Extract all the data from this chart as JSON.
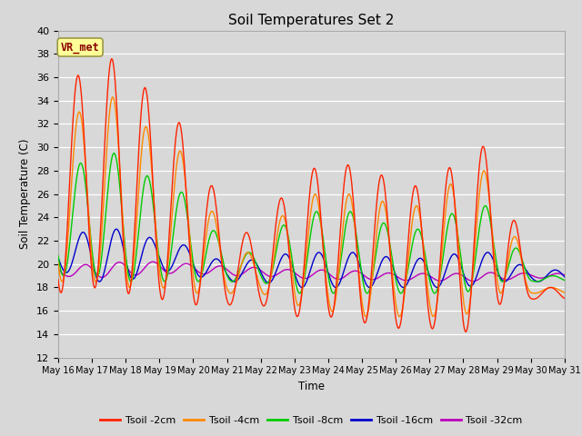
{
  "title": "Soil Temperatures Set 2",
  "xlabel": "Time",
  "ylabel": "Soil Temperature (C)",
  "ylim": [
    12,
    40
  ],
  "yticks": [
    12,
    14,
    16,
    18,
    20,
    22,
    24,
    26,
    28,
    30,
    32,
    34,
    36,
    38,
    40
  ],
  "bg_color": "#d8d8d8",
  "plot_bg_color": "#d8d8d8",
  "series_colors": {
    "Tsoil -2cm": "#ff2200",
    "Tsoil -4cm": "#ff8800",
    "Tsoil -8cm": "#00cc00",
    "Tsoil -16cm": "#0000cc",
    "Tsoil -32cm": "#bb00bb"
  },
  "series_lw": 1.0,
  "annotation_text": "VR_met",
  "annotation_color": "#880000",
  "annotation_bg": "#ffff99",
  "annotation_border": "#999944"
}
